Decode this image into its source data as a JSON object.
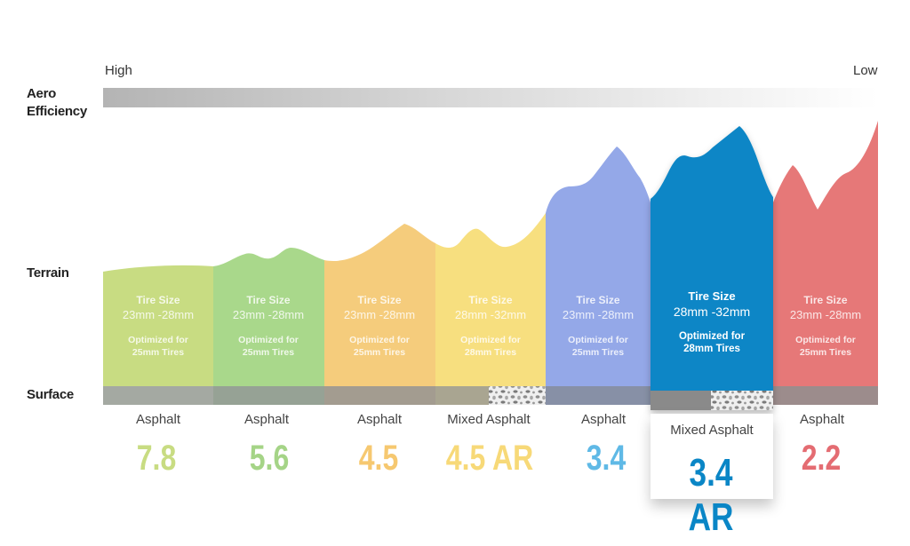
{
  "aero": {
    "high_label": "High",
    "low_label": "Low"
  },
  "labels": {
    "aero_line1": "Aero",
    "aero_line2": "Efficiency",
    "terrain": "Terrain",
    "surface": "Surface"
  },
  "columns": [
    {
      "color": "#c8dc82",
      "tire_label": "Tire Size",
      "tire_range": "23mm -28mm",
      "opt_line1": "Optimized for",
      "opt_line2": "25mm Tires",
      "surface": "Asphalt",
      "gravel": false,
      "score": "7.8",
      "score_color": "#c8dc82"
    },
    {
      "color": "#a9d88b",
      "tire_label": "Tire Size",
      "tire_range": "23mm -28mm",
      "opt_line1": "Optimized for",
      "opt_line2": "25mm Tires",
      "surface": "Asphalt",
      "gravel": false,
      "score": "5.6",
      "score_color": "#a5d487"
    },
    {
      "color": "#f5cc7c",
      "tire_label": "Tire Size",
      "tire_range": "23mm -28mm",
      "opt_line1": "Optimized for",
      "opt_line2": "25mm Tires",
      "surface": "Asphalt",
      "gravel": false,
      "score": "4.5",
      "score_color": "#f6c870"
    },
    {
      "color": "#f7df7f",
      "tire_label": "Tire Size",
      "tire_range": "28mm -32mm",
      "opt_line1": "Optimized for",
      "opt_line2": "28mm Tires",
      "surface": "Mixed Asphalt",
      "gravel": true,
      "score": "4.5 AR",
      "score_color": "#f7d978"
    },
    {
      "color": "#94a8e8",
      "tire_label": "Tire Size",
      "tire_range": "23mm -28mm",
      "opt_line1": "Optimized for",
      "opt_line2": "25mm Tires",
      "surface": "Asphalt",
      "gravel": false,
      "score": "3.4",
      "score_color": "#5fb9e6"
    },
    {
      "color": "#0a86c6",
      "tire_label": "Tire Size",
      "tire_range": "28mm -32mm",
      "opt_line1": "Optimized for",
      "opt_line2": "28mm Tires",
      "surface": "Mixed Asphalt",
      "gravel": true,
      "score": "3.4 AR",
      "score_color": "#0a86c6",
      "featured": true
    },
    {
      "color": "#e67878",
      "tire_label": "Tire Size",
      "tire_range": "23mm -28mm",
      "opt_line1": "Optimized for",
      "opt_line2": "25mm Tires",
      "surface": "Asphalt",
      "gravel": false,
      "score": "2.2",
      "score_color": "#e46c72"
    }
  ]
}
